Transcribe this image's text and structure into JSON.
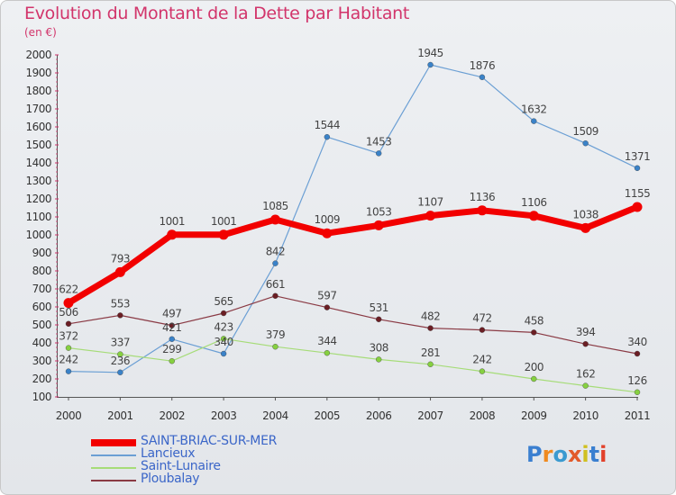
{
  "title": "Evolution du Montant de la Dette par Habitant",
  "unit": "(en €)",
  "logo": {
    "text": "Proxiti",
    "colors": [
      "#3a7fd0",
      "#f08a1f",
      "#3a9ad0",
      "#e25a2a",
      "#d0c020",
      "#3a7fd0",
      "#e2412a"
    ]
  },
  "chart_data": {
    "type": "line",
    "title": "Evolution du Montant de la Dette par Habitant",
    "ylabel": "(en €)",
    "xlabel": "",
    "x": [
      "2000",
      "2001",
      "2002",
      "2003",
      "2004",
      "2005",
      "2006",
      "2007",
      "2008",
      "2009",
      "2010",
      "2011"
    ],
    "ylim": [
      100,
      2000
    ],
    "yticks": [
      100,
      200,
      300,
      400,
      500,
      600,
      700,
      800,
      900,
      1000,
      1100,
      1200,
      1300,
      1400,
      1500,
      1600,
      1700,
      1800,
      1900,
      2000
    ],
    "grid": false,
    "legend_position": "bottom-left",
    "series": [
      {
        "name": "Lancieux",
        "color": "#6b9fd4",
        "marker": "#3a82c8",
        "width": 1.2,
        "values": [
          242,
          236,
          421,
          340,
          842,
          1544,
          1453,
          1945,
          1876,
          1632,
          1509,
          1371
        ]
      },
      {
        "name": "Saint-Lunaire",
        "color": "#a6dc78",
        "marker": "#86d040",
        "width": 1.2,
        "values": [
          372,
          337,
          299,
          423,
          379,
          344,
          308,
          281,
          242,
          200,
          162,
          126
        ]
      },
      {
        "name": "Ploubalay",
        "color": "#8a3a44",
        "marker": "#6b1e24",
        "width": 1.2,
        "values": [
          506,
          553,
          497,
          565,
          661,
          597,
          531,
          482,
          472,
          458,
          394,
          340
        ]
      },
      {
        "name": "SAINT-BRIAC-SUR-MER",
        "color": "#f20000",
        "marker": "#f20000",
        "width": 7,
        "values": [
          622,
          793,
          1001,
          1001,
          1085,
          1009,
          1053,
          1107,
          1136,
          1106,
          1038,
          1155
        ]
      }
    ],
    "legend_order": [
      "SAINT-BRIAC-SUR-MER",
      "Lancieux",
      "Saint-Lunaire",
      "Ploubalay"
    ]
  }
}
